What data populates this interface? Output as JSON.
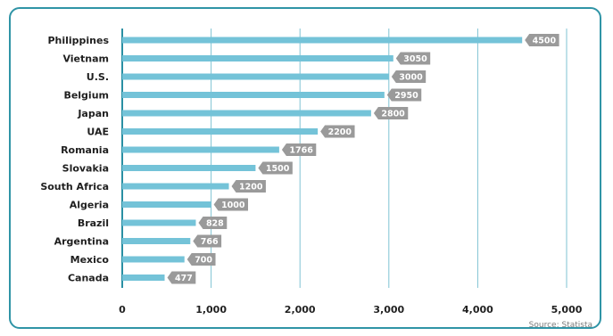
{
  "chart_data": {
    "type": "bar",
    "orientation": "horizontal",
    "categories": [
      "Philippines",
      "Vietnam",
      "U.S.",
      "Belgium",
      "Japan",
      "UAE",
      "Romania",
      "Slovakia",
      "South Africa",
      "Algeria",
      "Brazil",
      "Argentina",
      "Mexico",
      "Canada"
    ],
    "values": [
      4500,
      3050,
      3000,
      2950,
      2800,
      2200,
      1766,
      1500,
      1200,
      1000,
      828,
      766,
      700,
      477
    ],
    "value_labels": [
      "4500",
      "3050",
      "3000",
      "2950",
      "2800",
      "2200",
      "1766",
      "1500",
      "1200",
      "1000",
      "828",
      "766",
      "700",
      "477"
    ],
    "xlim": [
      0,
      5000
    ],
    "x_ticks": [
      0,
      1000,
      2000,
      3000,
      4000,
      5000
    ],
    "x_tick_labels": [
      "0",
      "1,000",
      "2,000",
      "3,000",
      "4,000",
      "5,000"
    ],
    "grid": "vertical",
    "source": "Source: Statista",
    "colors": {
      "bar": "#74c3d8",
      "label_bg": "#9a9a9a",
      "grid": "#7fc3d3",
      "frame": "#2f94a6"
    }
  }
}
